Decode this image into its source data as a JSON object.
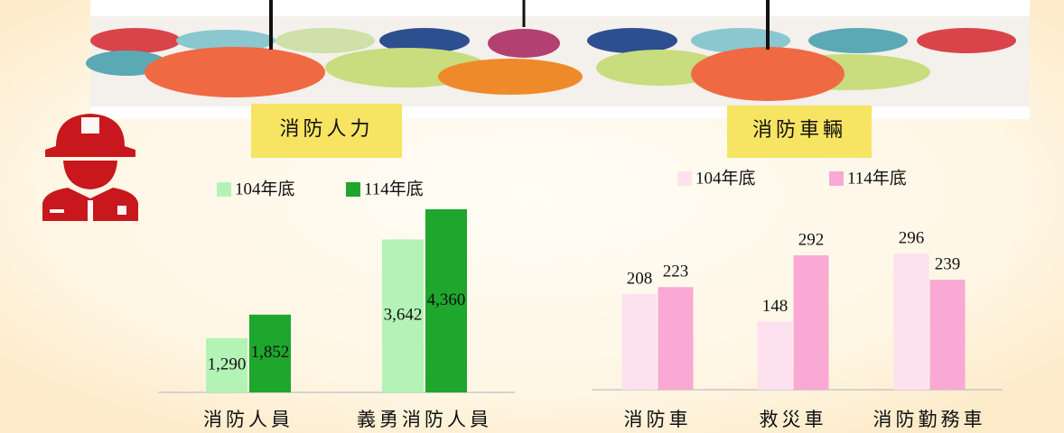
{
  "chart_data": [
    {
      "type": "bar",
      "title": "消防人力",
      "categories": [
        "消防人員",
        "義勇消防人員"
      ],
      "series": [
        {
          "name": "104年底",
          "color": "#b3f3b6",
          "values": [
            1290,
            3642
          ],
          "value_labels": [
            "1,290",
            "3,642"
          ]
        },
        {
          "name": "114年底",
          "color": "#1ea62d",
          "values": [
            1852,
            4360
          ],
          "value_labels": [
            "1,852",
            "4,360"
          ]
        }
      ],
      "ylim": [
        0,
        4500
      ]
    },
    {
      "type": "bar",
      "title": "消防車輛",
      "categories": [
        "消防車",
        "救災車",
        "消防勤務車"
      ],
      "series": [
        {
          "name": "104年底",
          "color": "#fde1ef",
          "values": [
            208,
            148,
            296
          ]
        },
        {
          "name": "114年底",
          "color": "#f9a9d3",
          "values": [
            223,
            292,
            239
          ]
        }
      ],
      "ylim": [
        0,
        400
      ]
    }
  ]
}
